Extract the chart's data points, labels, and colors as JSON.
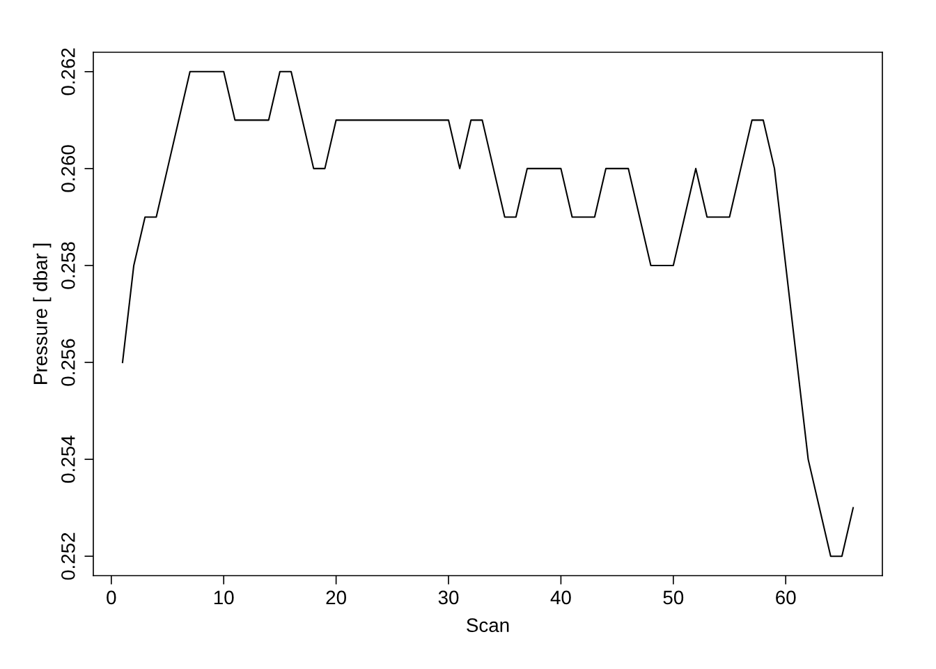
{
  "chart_data": {
    "type": "line",
    "xlabel": "Scan",
    "ylabel": "Pressure [ dbar ]",
    "x": [
      1,
      2,
      3,
      4,
      5,
      6,
      7,
      8,
      9,
      10,
      11,
      12,
      13,
      14,
      15,
      16,
      17,
      18,
      19,
      20,
      21,
      22,
      23,
      24,
      25,
      26,
      27,
      28,
      29,
      30,
      31,
      32,
      33,
      34,
      35,
      36,
      37,
      38,
      39,
      40,
      41,
      42,
      43,
      44,
      45,
      46,
      47,
      48,
      49,
      50,
      51,
      52,
      53,
      54,
      55,
      56,
      57,
      58,
      59,
      60,
      61,
      62,
      63,
      64,
      65,
      66
    ],
    "series": [
      {
        "color": "#000000",
        "values": [
          0.256,
          0.258,
          0.259,
          0.259,
          0.26,
          0.261,
          0.262,
          0.262,
          0.262,
          0.262,
          0.261,
          0.261,
          0.261,
          0.261,
          0.262,
          0.262,
          0.261,
          0.26,
          0.26,
          0.261,
          0.261,
          0.261,
          0.261,
          0.261,
          0.261,
          0.261,
          0.261,
          0.261,
          0.261,
          0.261,
          0.26,
          0.261,
          0.261,
          0.26,
          0.259,
          0.259,
          0.26,
          0.26,
          0.26,
          0.26,
          0.259,
          0.259,
          0.259,
          0.26,
          0.26,
          0.26,
          0.259,
          0.258,
          0.258,
          0.258,
          0.259,
          0.26,
          0.259,
          0.259,
          0.259,
          0.26,
          0.261,
          0.261,
          0.26,
          0.258,
          0.256,
          0.254,
          0.253,
          0.252,
          0.252,
          0.253
        ]
      }
    ],
    "xlim": [
      -1.6,
      68.6
    ],
    "ylim": [
      0.2516,
      0.2624
    ],
    "xticks": [
      0,
      10,
      20,
      30,
      40,
      50,
      60
    ],
    "yticks": [
      {
        "value": 0.252,
        "label": "0.252"
      },
      {
        "value": 0.254,
        "label": "0.254"
      },
      {
        "value": 0.256,
        "label": "0.256"
      },
      {
        "value": 0.258,
        "label": "0.258"
      },
      {
        "value": 0.26,
        "label": "0.260"
      },
      {
        "value": 0.262,
        "label": "0.262"
      }
    ],
    "grid": false,
    "marker": "none",
    "line_style": "solid"
  }
}
